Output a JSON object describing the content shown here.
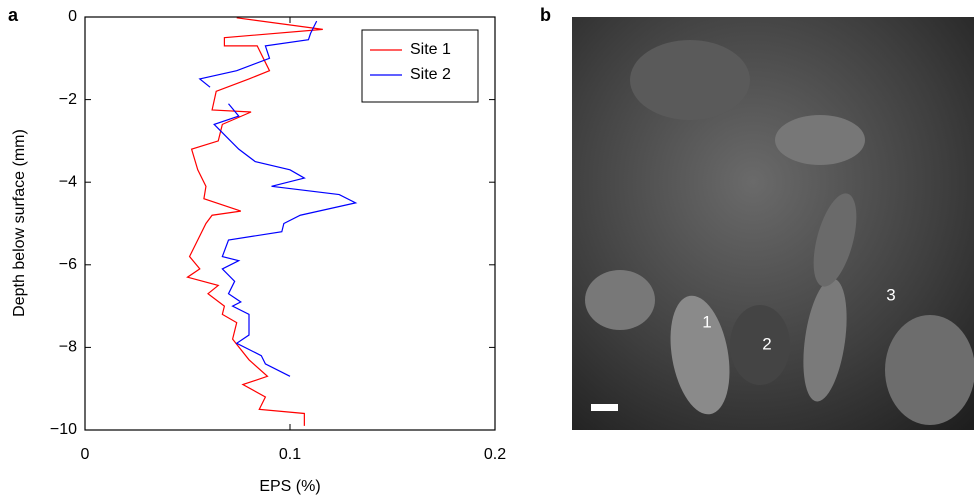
{
  "chart_data": {
    "type": "line",
    "xlabel": "EPS (%)",
    "ylabel": "Depth below surface (mm)",
    "xlim": [
      0,
      0.2
    ],
    "ylim": [
      -10,
      0
    ],
    "xticks": [
      0,
      0.1,
      0.2
    ],
    "yticks": [
      {
        "value": -10,
        "label": "−10"
      },
      {
        "value": -8,
        "label": "−8"
      },
      {
        "value": -6,
        "label": "−6"
      },
      {
        "value": -4,
        "label": "−4"
      },
      {
        "value": -2,
        "label": "−2"
      },
      0
    ],
    "legend": "upper right",
    "series": [
      {
        "name": "Site 1",
        "color": "#ff0000",
        "x": [
          0.074,
          0.116,
          0.068,
          0.068,
          0.084,
          0.087,
          0.09,
          0.08,
          0.064,
          0.062,
          0.081,
          0.067,
          0.065,
          0.052,
          0.055,
          0.059,
          0.058,
          0.076,
          0.062,
          0.059,
          0.055,
          0.051,
          0.056,
          0.05,
          0.065,
          0.06,
          0.068,
          0.067,
          0.074,
          0.072,
          0.08,
          0.089,
          0.077,
          0.088,
          0.085,
          0.107,
          0.107
        ],
        "y": [
          -0.02,
          -0.3,
          -0.5,
          -0.7,
          -0.7,
          -1.0,
          -1.3,
          -1.5,
          -1.8,
          -2.25,
          -2.3,
          -2.6,
          -3.0,
          -3.2,
          -3.7,
          -4.1,
          -4.4,
          -4.7,
          -4.8,
          -5.0,
          -5.4,
          -5.8,
          -6.1,
          -6.3,
          -6.5,
          -6.7,
          -7.0,
          -7.2,
          -7.4,
          -7.8,
          -8.3,
          -8.7,
          -8.9,
          -9.2,
          -9.5,
          -9.6,
          -9.9
        ]
      },
      {
        "name": "Site 2",
        "color": "#0000ff",
        "x": [
          0.113,
          0.11,
          0.109,
          0.088,
          0.09,
          0.074,
          0.056,
          0.061,
          null,
          0.07,
          0.075,
          0.063,
          0.069,
          0.075,
          0.083,
          0.1,
          0.107,
          0.091,
          0.124,
          0.132,
          0.105,
          0.097,
          0.096,
          0.07,
          0.067,
          0.075,
          0.067,
          0.073,
          0.07,
          0.076,
          0.072,
          0.08,
          0.08,
          0.074,
          0.086,
          0.088,
          0.1
        ],
        "y": [
          -0.1,
          -0.4,
          -0.55,
          -0.7,
          -1.0,
          -1.3,
          -1.5,
          -1.7,
          null,
          -2.1,
          -2.4,
          -2.6,
          -2.9,
          -3.2,
          -3.5,
          -3.7,
          -3.9,
          -4.1,
          -4.3,
          -4.5,
          -4.8,
          -5.0,
          -5.2,
          -5.4,
          -5.8,
          -5.9,
          -6.1,
          -6.4,
          -6.7,
          -6.9,
          -7.0,
          -7.2,
          -7.7,
          -7.9,
          -8.2,
          -8.4,
          -8.7
        ]
      }
    ]
  },
  "panels": [
    "a",
    "b"
  ],
  "micrograph": {
    "labels": [
      "1",
      "2",
      "3"
    ]
  }
}
